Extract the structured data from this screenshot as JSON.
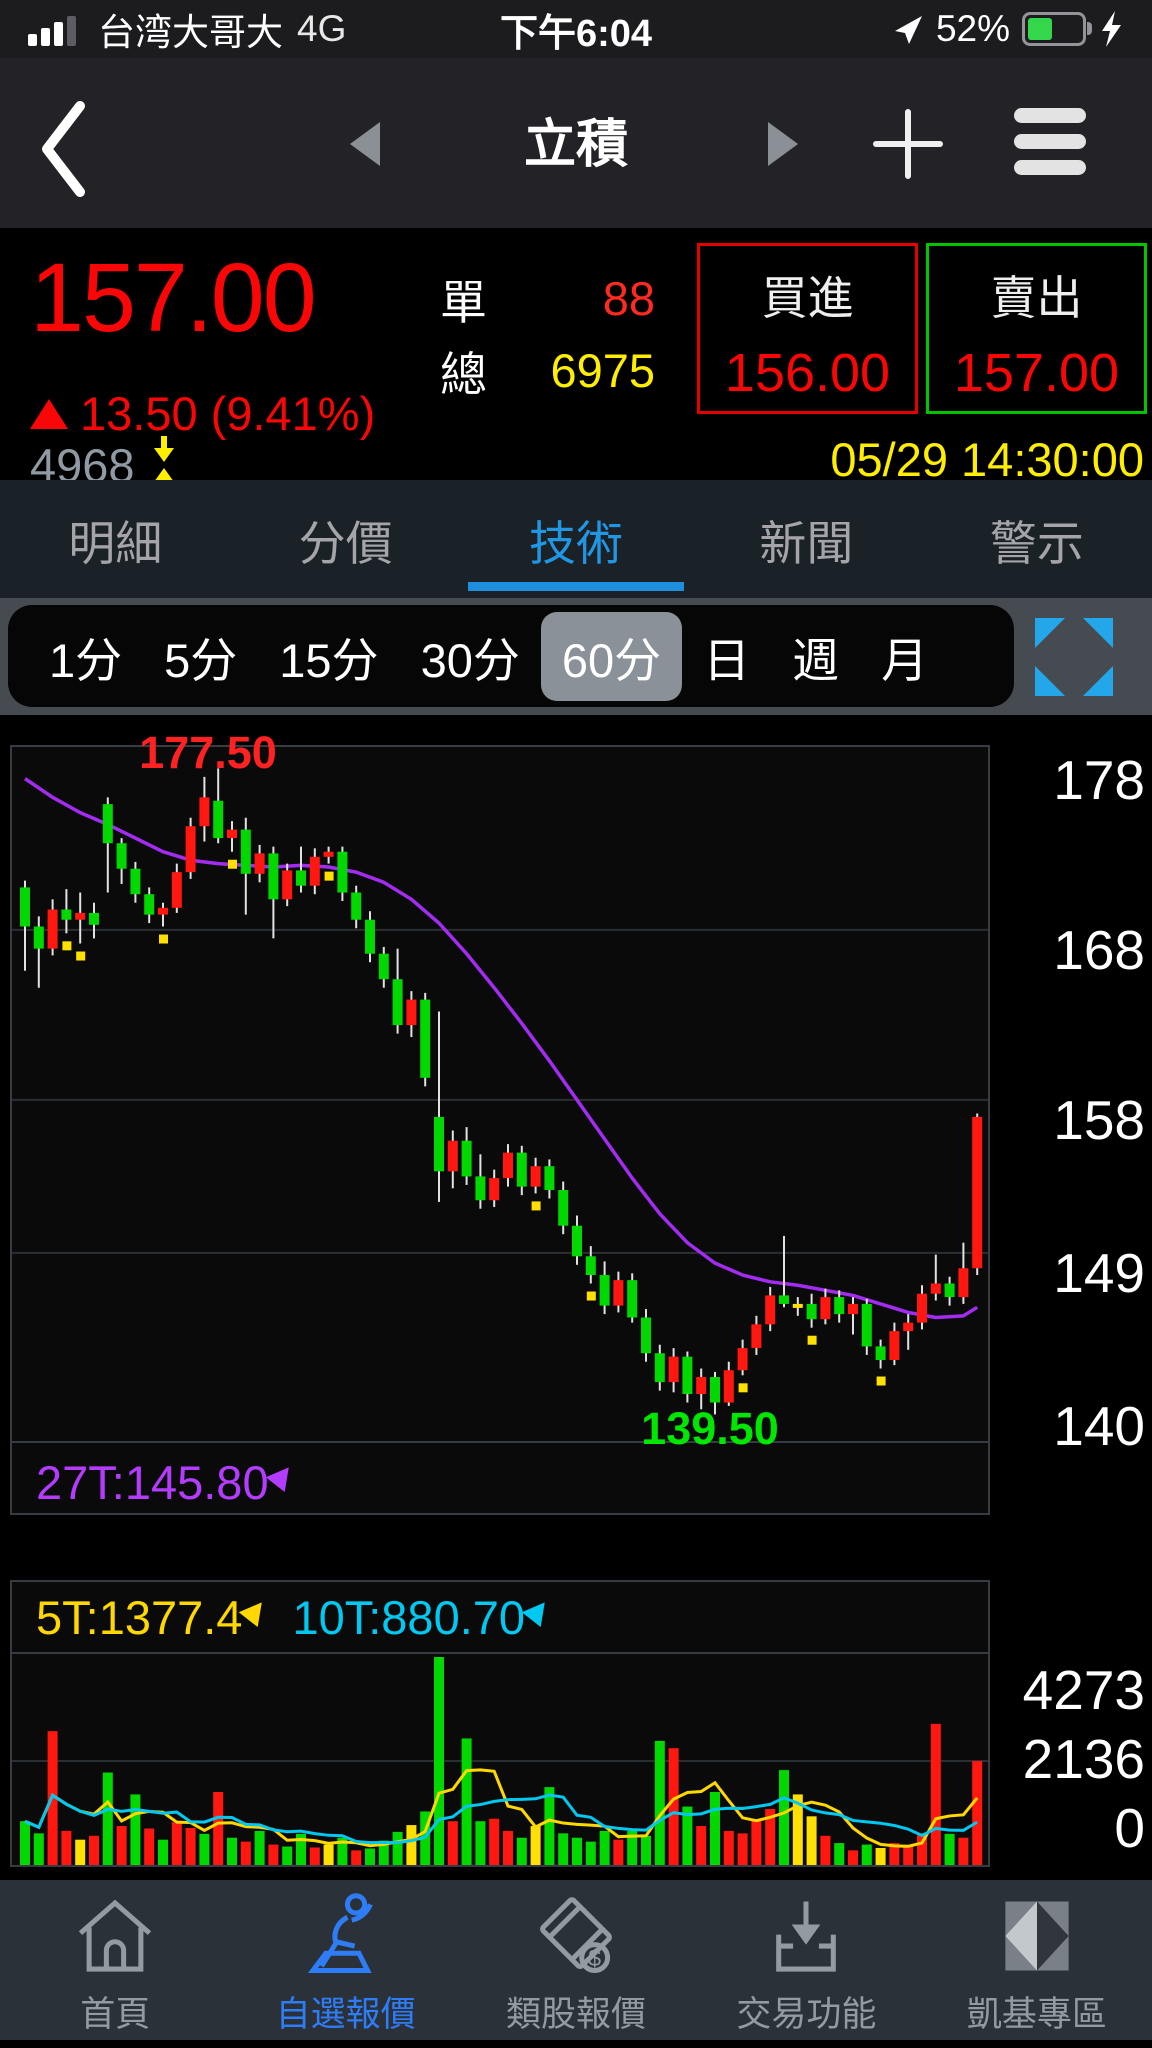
{
  "status_bar": {
    "carrier": "台湾大哥大",
    "network": "4G",
    "time": "下午6:04",
    "battery_percent": "52%"
  },
  "nav_bar": {
    "title": "立積"
  },
  "quote": {
    "price": "157.00",
    "change_text": "13.50 (9.41%)",
    "single_label": "單",
    "single_value": "88",
    "total_label": "總",
    "total_value": "6975",
    "buy_label": "買進",
    "buy_price": "156.00",
    "sell_label": "賣出",
    "sell_price": "157.00",
    "symbol_code": "4968",
    "datetime": "05/29 14:30:00"
  },
  "tabs": [
    {
      "id": "detail",
      "label": "明細",
      "active": false
    },
    {
      "id": "price-volume",
      "label": "分價",
      "active": false
    },
    {
      "id": "technical",
      "label": "技術",
      "active": true
    },
    {
      "id": "news",
      "label": "新聞",
      "active": false
    },
    {
      "id": "alert",
      "label": "警示",
      "active": false
    }
  ],
  "timeframes": [
    {
      "id": "1m",
      "label": "1分",
      "selected": false
    },
    {
      "id": "5m",
      "label": "5分",
      "selected": false
    },
    {
      "id": "15m",
      "label": "15分",
      "selected": false
    },
    {
      "id": "30m",
      "label": "30分",
      "selected": false
    },
    {
      "id": "60m",
      "label": "60分",
      "selected": true
    },
    {
      "id": "day",
      "label": "日",
      "selected": false
    },
    {
      "id": "week",
      "label": "週",
      "selected": false
    },
    {
      "id": "month",
      "label": "月",
      "selected": false
    }
  ],
  "chart_data": {
    "type": "candlestick",
    "period": "60分",
    "high_label": "177.50",
    "low_label": "139.50",
    "ma27_label": "27T:145.80",
    "vol_ma5_label": "5T:1377.4",
    "vol_ma10_label": "10T:880.70",
    "price_axis": [
      {
        "label": "178",
        "value": 178
      },
      {
        "label": "168",
        "value": 168
      },
      {
        "label": "158",
        "value": 158
      },
      {
        "label": "149",
        "value": 149
      },
      {
        "label": "140",
        "value": 140
      }
    ],
    "volume_axis": [
      {
        "label": "4273",
        "value": 4273
      },
      {
        "label": "2136",
        "value": 2136
      },
      {
        "label": "0",
        "value": 0
      }
    ],
    "colors": {
      "up": "#ff1710",
      "down": "#00d800",
      "flat": "#ffe000",
      "wick": "#e2e2e2",
      "ma27": "#a22cf0",
      "vol_ma5": "#ffd800",
      "vol_ma10": "#00c8f0",
      "grid": "#2a2f33"
    },
    "candles": [
      [
        170.5,
        170.9,
        165.6,
        168.2
      ],
      [
        168.2,
        168.8,
        164.6,
        166.9
      ],
      [
        166.9,
        169.8,
        166.5,
        169.2
      ],
      [
        169.2,
        170.4,
        167.8,
        168.6,
        1
      ],
      [
        168.6,
        170.2,
        167.2,
        169.0,
        1
      ],
      [
        169.0,
        169.6,
        167.5,
        168.3
      ],
      [
        175.4,
        175.8,
        170.2,
        173.1
      ],
      [
        173.1,
        173.4,
        170.7,
        171.6
      ],
      [
        171.6,
        172.0,
        169.6,
        170.1
      ],
      [
        170.1,
        170.5,
        168.4,
        168.9
      ],
      [
        168.9,
        169.6,
        168.2,
        169.3,
        1
      ],
      [
        169.3,
        171.9,
        169.0,
        171.4
      ],
      [
        171.4,
        174.6,
        171.0,
        174.1
      ],
      [
        174.1,
        177.0,
        173.2,
        175.8
      ],
      [
        175.6,
        177.5,
        173.1,
        173.4
      ],
      [
        173.4,
        174.4,
        172.6,
        173.9,
        1
      ],
      [
        173.9,
        174.6,
        168.9,
        171.3
      ],
      [
        171.3,
        173.0,
        170.8,
        172.5
      ],
      [
        172.5,
        172.9,
        167.5,
        169.8
      ],
      [
        169.8,
        171.9,
        169.4,
        171.5
      ],
      [
        171.5,
        172.9,
        170.2,
        170.6
      ],
      [
        170.6,
        172.8,
        170.1,
        172.3
      ],
      [
        172.3,
        172.9,
        171.9,
        172.6,
        1
      ],
      [
        172.6,
        172.9,
        169.7,
        170.2
      ],
      [
        170.2,
        170.6,
        168.1,
        168.6
      ],
      [
        168.6,
        169.1,
        166.1,
        166.6
      ],
      [
        166.6,
        167.0,
        164.6,
        165.1
      ],
      [
        165.1,
        166.9,
        161.9,
        162.4
      ],
      [
        162.4,
        164.4,
        161.7,
        163.9
      ],
      [
        163.9,
        164.3,
        158.8,
        159.3
      ],
      [
        157.0,
        163.2,
        152.0,
        153.8
      ],
      [
        153.8,
        156.2,
        152.8,
        155.6
      ],
      [
        155.6,
        156.4,
        153.0,
        153.5
      ],
      [
        153.5,
        154.8,
        151.6,
        152.1
      ],
      [
        152.1,
        153.9,
        151.7,
        153.4
      ],
      [
        153.4,
        155.4,
        152.9,
        154.9
      ],
      [
        154.9,
        155.3,
        152.4,
        152.9
      ],
      [
        152.9,
        154.6,
        152.5,
        154.1,
        1
      ],
      [
        154.1,
        154.5,
        152.2,
        152.7
      ],
      [
        152.7,
        153.2,
        150.1,
        150.6
      ],
      [
        150.6,
        151.2,
        148.3,
        148.8
      ],
      [
        148.8,
        149.4,
        147.2,
        147.7,
        1
      ],
      [
        147.7,
        148.5,
        145.4,
        145.9
      ],
      [
        145.9,
        147.9,
        145.5,
        147.4
      ],
      [
        147.4,
        147.8,
        144.9,
        145.2
      ],
      [
        145.2,
        145.7,
        142.6,
        143.1
      ],
      [
        143.1,
        143.6,
        140.9,
        141.4
      ],
      [
        141.4,
        143.4,
        140.8,
        142.9
      ],
      [
        142.9,
        143.2,
        140.2,
        140.7
      ],
      [
        140.7,
        142.2,
        139.8,
        141.7
      ],
      [
        141.7,
        142.0,
        139.5,
        140.2
      ],
      [
        140.2,
        142.6,
        140.0,
        142.1
      ],
      [
        142.1,
        143.9,
        141.8,
        143.4,
        1
      ],
      [
        143.4,
        145.3,
        143.0,
        144.8
      ],
      [
        144.8,
        147.0,
        144.4,
        146.5
      ],
      [
        146.5,
        150.0,
        145.8,
        146.0
      ],
      [
        146.0,
        146.4,
        145.3,
        146.0
      ],
      [
        146.0,
        146.6,
        144.6,
        145.1,
        1
      ],
      [
        145.1,
        146.9,
        144.8,
        146.4
      ],
      [
        146.4,
        146.8,
        144.9,
        145.4
      ],
      [
        145.4,
        146.4,
        144.2,
        146.0
      ],
      [
        146.0,
        146.3,
        143.0,
        143.5
      ],
      [
        143.5,
        143.9,
        142.2,
        142.7,
        1
      ],
      [
        142.7,
        144.9,
        142.4,
        144.4
      ],
      [
        144.4,
        145.4,
        143.3,
        144.9
      ],
      [
        144.9,
        147.1,
        144.5,
        146.6
      ],
      [
        146.6,
        148.9,
        146.2,
        147.2
      ],
      [
        147.2,
        147.6,
        145.9,
        146.4
      ],
      [
        146.4,
        149.6,
        146.0,
        148.1
      ],
      [
        148.1,
        157.2,
        147.7,
        157.0
      ]
    ],
    "volumes": [
      [
        900,
        "g"
      ],
      [
        650,
        "g"
      ],
      [
        2750,
        "r"
      ],
      [
        700,
        "r"
      ],
      [
        520,
        "y"
      ],
      [
        600,
        "r"
      ],
      [
        1900,
        "g"
      ],
      [
        800,
        "r"
      ],
      [
        1450,
        "g"
      ],
      [
        750,
        "r"
      ],
      [
        520,
        "g"
      ],
      [
        880,
        "r"
      ],
      [
        760,
        "r"
      ],
      [
        640,
        "g"
      ],
      [
        1500,
        "r"
      ],
      [
        560,
        "g"
      ],
      [
        480,
        "r"
      ],
      [
        700,
        "g"
      ],
      [
        420,
        "r"
      ],
      [
        380,
        "g"
      ],
      [
        640,
        "g"
      ],
      [
        360,
        "r"
      ],
      [
        420,
        "y"
      ],
      [
        560,
        "g"
      ],
      [
        300,
        "r"
      ],
      [
        340,
        "g"
      ],
      [
        500,
        "g"
      ],
      [
        680,
        "g"
      ],
      [
        820,
        "y"
      ],
      [
        1100,
        "g"
      ],
      [
        4273,
        "g"
      ],
      [
        900,
        "r"
      ],
      [
        2600,
        "g"
      ],
      [
        900,
        "g"
      ],
      [
        950,
        "r"
      ],
      [
        700,
        "r"
      ],
      [
        560,
        "g"
      ],
      [
        800,
        "y"
      ],
      [
        1600,
        "g"
      ],
      [
        650,
        "g"
      ],
      [
        560,
        "g"
      ],
      [
        480,
        "g"
      ],
      [
        700,
        "g"
      ],
      [
        520,
        "r"
      ],
      [
        700,
        "g"
      ],
      [
        600,
        "g"
      ],
      [
        2550,
        "g"
      ],
      [
        2400,
        "r"
      ],
      [
        1200,
        "g"
      ],
      [
        800,
        "r"
      ],
      [
        1500,
        "g"
      ],
      [
        700,
        "r"
      ],
      [
        650,
        "r"
      ],
      [
        900,
        "r"
      ],
      [
        1150,
        "r"
      ],
      [
        1950,
        "g"
      ],
      [
        1450,
        "y"
      ],
      [
        1000,
        "y"
      ],
      [
        600,
        "r"
      ],
      [
        450,
        "g"
      ],
      [
        300,
        "r"
      ],
      [
        420,
        "g"
      ],
      [
        350,
        "y"
      ],
      [
        450,
        "r"
      ],
      [
        400,
        "r"
      ],
      [
        650,
        "r"
      ],
      [
        2900,
        "r"
      ],
      [
        640,
        "g"
      ],
      [
        560,
        "r"
      ],
      [
        2137,
        "r"
      ]
    ],
    "ma27_points": [
      [
        0,
        176.9
      ],
      [
        2,
        175.8
      ],
      [
        4,
        174.9
      ],
      [
        6,
        174.2
      ],
      [
        8,
        173.4
      ],
      [
        10,
        172.6
      ],
      [
        12,
        172.1
      ],
      [
        14,
        171.9
      ],
      [
        16,
        171.8
      ],
      [
        18,
        171.7
      ],
      [
        20,
        171.8
      ],
      [
        22,
        171.7
      ],
      [
        24,
        171.4
      ],
      [
        26,
        170.8
      ],
      [
        28,
        169.8
      ],
      [
        30,
        168.4
      ],
      [
        32,
        166.6
      ],
      [
        34,
        164.6
      ],
      [
        36,
        162.5
      ],
      [
        38,
        160.3
      ],
      [
        40,
        158.0
      ],
      [
        42,
        155.7
      ],
      [
        44,
        153.4
      ],
      [
        46,
        151.3
      ],
      [
        48,
        149.6
      ],
      [
        50,
        148.4
      ],
      [
        52,
        147.7
      ],
      [
        54,
        147.3
      ],
      [
        56,
        147.1
      ],
      [
        58,
        146.8
      ],
      [
        60,
        146.5
      ],
      [
        62,
        146.0
      ],
      [
        64,
        145.5
      ],
      [
        66,
        145.2
      ],
      [
        68,
        145.3
      ],
      [
        69,
        145.8
      ]
    ]
  },
  "bottom_nav": [
    {
      "id": "home",
      "label": "首頁",
      "active": false
    },
    {
      "id": "watchlist",
      "label": "自選報價",
      "active": true
    },
    {
      "id": "sector-quotes",
      "label": "類股報價",
      "active": false
    },
    {
      "id": "trade",
      "label": "交易功能",
      "active": false
    },
    {
      "id": "kgi-zone",
      "label": "凱基專區",
      "active": false
    }
  ]
}
